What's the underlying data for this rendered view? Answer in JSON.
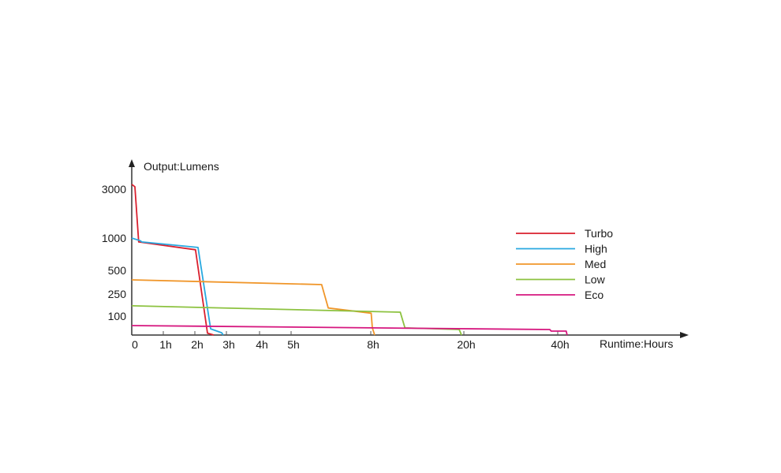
{
  "chart_data": {
    "type": "line",
    "title": "",
    "ylabel": "Output:Lumens",
    "xlabel": "Runtime:Hours",
    "x_ticks": [
      {
        "value": 0,
        "label": "0"
      },
      {
        "value": 1,
        "label": "1h"
      },
      {
        "value": 2,
        "label": "2h"
      },
      {
        "value": 3,
        "label": "3h"
      },
      {
        "value": 4,
        "label": "4h"
      },
      {
        "value": 5,
        "label": "5h"
      },
      {
        "value": 8,
        "label": "8h"
      },
      {
        "value": 20,
        "label": "20h"
      },
      {
        "value": 40,
        "label": "40h"
      }
    ],
    "y_ticks": [
      {
        "value": 100,
        "label": "100"
      },
      {
        "value": 250,
        "label": "250"
      },
      {
        "value": 500,
        "label": "500"
      },
      {
        "value": 1000,
        "label": "1000"
      },
      {
        "value": 3000,
        "label": "3000"
      }
    ],
    "x_scale": "non-uniform (piecewise between labeled ticks)",
    "y_scale": "non-uniform (piecewise between labeled ticks)",
    "grid": false,
    "legend_position": "right",
    "series": [
      {
        "name": "Turbo",
        "color": "#d9202e",
        "points": [
          [
            0,
            3200
          ],
          [
            0.1,
            3100
          ],
          [
            0.22,
            940
          ],
          [
            2.02,
            820
          ],
          [
            2.4,
            10
          ],
          [
            2.6,
            0
          ]
        ]
      },
      {
        "name": "High",
        "color": "#29a9e0",
        "points": [
          [
            0,
            1000
          ],
          [
            0.27,
            960
          ],
          [
            0.32,
            940
          ],
          [
            2.1,
            855
          ],
          [
            2.5,
            33
          ],
          [
            2.85,
            12
          ],
          [
            2.9,
            0
          ]
        ]
      },
      {
        "name": "Med",
        "color": "#f0962a",
        "points": [
          [
            0,
            400
          ],
          [
            6.15,
            350
          ],
          [
            6.4,
            155
          ],
          [
            8.05,
            120
          ],
          [
            8.2,
            38
          ],
          [
            8.5,
            0
          ]
        ]
      },
      {
        "name": "Low",
        "color": "#8cc23f",
        "points": [
          [
            0,
            170
          ],
          [
            11.8,
            127
          ],
          [
            12.4,
            38
          ],
          [
            19.4,
            29
          ],
          [
            19.7,
            0
          ]
        ]
      },
      {
        "name": "Eco",
        "color": "#d6177f",
        "points": [
          [
            0,
            50
          ],
          [
            38.3,
            29
          ],
          [
            38.6,
            21
          ],
          [
            41.8,
            21
          ],
          [
            42,
            0
          ]
        ]
      }
    ]
  }
}
